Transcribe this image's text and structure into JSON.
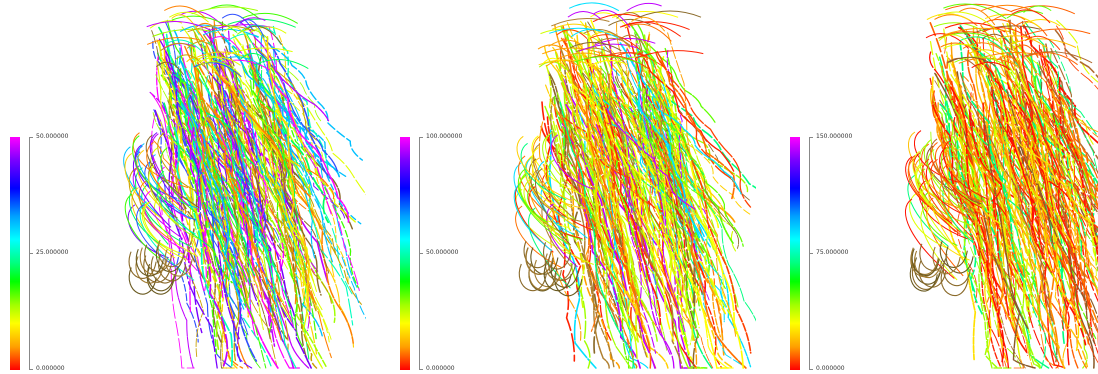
{
  "panels": [
    {
      "colorbar": {
        "max_label": "50.000000",
        "mid_label": "25.000000",
        "min_label": "0.000000"
      },
      "dominant_hue": "green-magenta"
    },
    {
      "colorbar": {
        "max_label": "100.000000",
        "mid_label": "50.000000",
        "min_label": "0.000000"
      },
      "dominant_hue": "yellow-orange"
    },
    {
      "colorbar": {
        "max_label": "150.000000",
        "mid_label": "75.000000",
        "min_label": "0.000000"
      },
      "dominant_hue": "orange-red"
    }
  ],
  "colors": {
    "scale_max": "#ff00ff",
    "scale_mid": "#00ff80",
    "scale_min": "#ff0000",
    "background": "#ffffff"
  },
  "icon_names": [
    "hair-strand-visualization",
    "color-scale-bar"
  ]
}
